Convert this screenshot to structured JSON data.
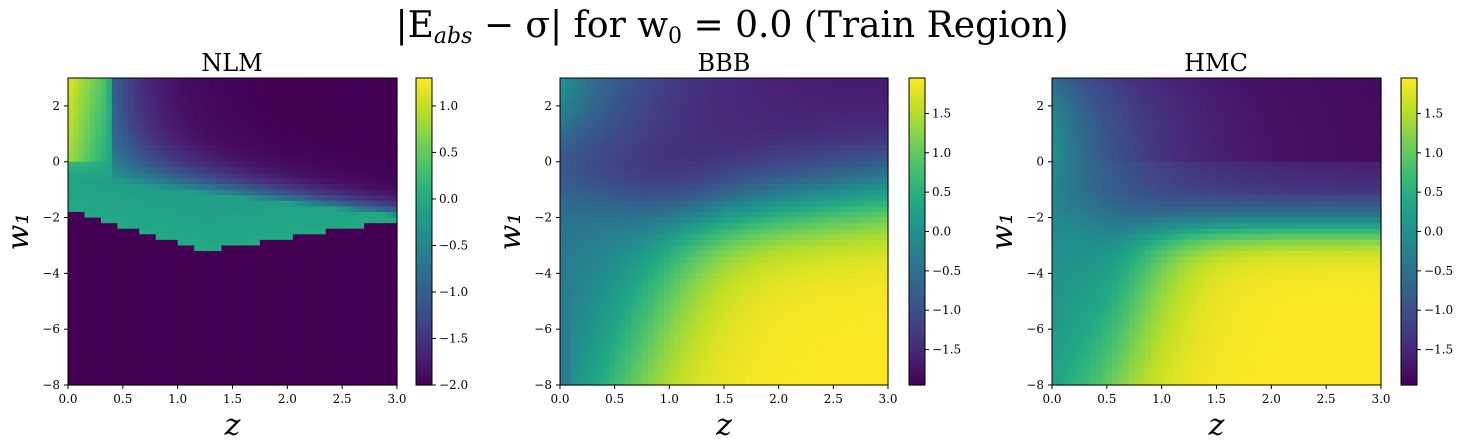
{
  "figure": {
    "suptitle_left": "|E",
    "suptitle_abs": "abs",
    "suptitle_mid": " − σ| for w",
    "suptitle_zero": "0",
    "suptitle_right": " = 0.0 (Train Region)"
  },
  "colormap": [
    "#440154",
    "#482475",
    "#414487",
    "#355f8d",
    "#2a788e",
    "#21918c",
    "#22a884",
    "#44bf70",
    "#7ad151",
    "#bddf26",
    "#fde725"
  ],
  "chart_data": [
    {
      "type": "heatmap",
      "title": "NLM",
      "xlabel": "z",
      "ylabel": "w₁",
      "xlim": [
        0.0,
        3.0
      ],
      "ylim": [
        -8,
        3
      ],
      "xticks": [
        "0.0",
        "0.5",
        "1.0",
        "1.5",
        "2.0",
        "2.5",
        "3.0"
      ],
      "yticks": [
        "−8",
        "−6",
        "−4",
        "−2",
        "0",
        "2"
      ],
      "yticks_values": [
        -8,
        -6,
        -4,
        -2,
        0,
        2
      ],
      "colorbar": {
        "min": -2.0,
        "max": 1.3,
        "ticks": [
          -2.0,
          -1.5,
          -1.0,
          -0.5,
          0.0,
          0.5,
          1.0
        ],
        "tick_labels": [
          "−2.0",
          "−1.5",
          "−1.0",
          "−0.5",
          "0.0",
          "0.5",
          "1.0"
        ]
      },
      "pattern": "nlm"
    },
    {
      "type": "heatmap",
      "title": "BBB",
      "xlabel": "z",
      "ylabel": "w₁",
      "xlim": [
        0.0,
        3.0
      ],
      "ylim": [
        -8,
        3
      ],
      "xticks": [
        "0.0",
        "0.5",
        "1.0",
        "1.5",
        "2.0",
        "2.5",
        "3.0"
      ],
      "yticks": [
        "−8",
        "−6",
        "−4",
        "−2",
        "0",
        "2"
      ],
      "yticks_values": [
        -8,
        -6,
        -4,
        -2,
        0,
        2
      ],
      "colorbar": {
        "min": -1.95,
        "max": 1.95,
        "ticks": [
          -1.5,
          -1.0,
          -0.5,
          0.0,
          0.5,
          1.0,
          1.5
        ],
        "tick_labels": [
          "−1.5",
          "−1.0",
          "−0.5",
          "0.0",
          "0.5",
          "1.0",
          "1.5"
        ]
      },
      "pattern": "bbb"
    },
    {
      "type": "heatmap",
      "title": "HMC",
      "xlabel": "z",
      "ylabel": "w₁",
      "xlim": [
        0.0,
        3.0
      ],
      "ylim": [
        -8,
        3
      ],
      "xticks": [
        "0.0",
        "0.5",
        "1.0",
        "1.5",
        "2.0",
        "2.5",
        "3.0"
      ],
      "yticks": [
        "−8",
        "−6",
        "−4",
        "−2",
        "0",
        "2"
      ],
      "yticks_values": [
        -8,
        -6,
        -4,
        -2,
        0,
        2
      ],
      "colorbar": {
        "min": -1.95,
        "max": 1.95,
        "ticks": [
          -1.5,
          -1.0,
          -0.5,
          0.0,
          0.5,
          1.0,
          1.5
        ],
        "tick_labels": [
          "−1.5",
          "−1.0",
          "−0.5",
          "0.0",
          "0.5",
          "1.0",
          "1.5"
        ]
      },
      "pattern": "hmc"
    }
  ]
}
